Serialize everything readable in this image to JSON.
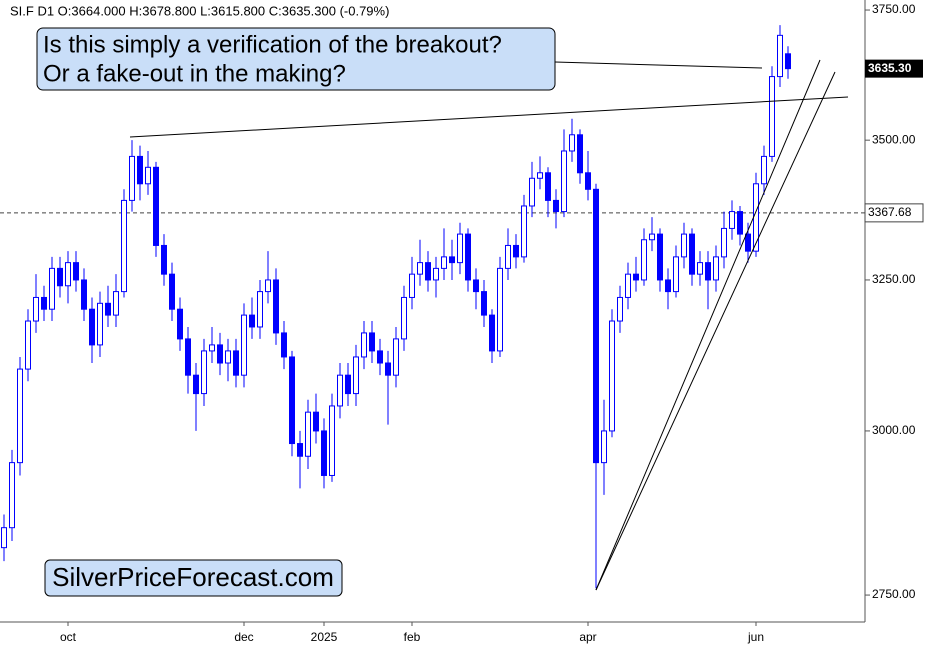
{
  "chart_data": {
    "type": "candlestick",
    "title": "SI.F  D1  O:3664.000  H:3678.800  L:3615.800  C:3635.300  (-0.79%)",
    "annotations": [
      "Is this simply a verification of the breakout?",
      "Or a fake-out in the making?"
    ],
    "watermark": "SilverPriceForecast.com",
    "color": "#0000ff",
    "log_scale": true,
    "grid": false,
    "ylim": [
      2711,
      3770
    ],
    "yticks": [
      {
        "value": 2750,
        "label": "2750.00"
      },
      {
        "value": 3000,
        "label": "3000.00"
      },
      {
        "value": 3250,
        "label": "3250.00"
      },
      {
        "value": 3500,
        "label": "3500.00"
      },
      {
        "value": 3750,
        "label": "3750.00"
      }
    ],
    "current_price": {
      "value": 3635.3,
      "label": "3635.30"
    },
    "level": {
      "value": 3367.68,
      "label": "3367.68"
    },
    "categories": [
      null,
      null,
      null,
      null,
      null,
      null,
      null,
      null,
      "oct",
      null,
      null,
      null,
      null,
      null,
      null,
      null,
      null,
      null,
      null,
      null,
      null,
      null,
      null,
      null,
      null,
      null,
      null,
      null,
      null,
      null,
      "dec",
      null,
      null,
      null,
      null,
      null,
      null,
      null,
      null,
      null,
      "2025",
      null,
      null,
      null,
      null,
      null,
      null,
      null,
      null,
      null,
      null,
      "feb",
      null,
      null,
      null,
      null,
      null,
      null,
      null,
      null,
      null,
      null,
      null,
      null,
      null,
      null,
      null,
      null,
      null,
      null,
      null,
      null,
      null,
      "apr",
      null,
      null,
      null,
      null,
      null,
      null,
      null,
      null,
      null,
      null,
      null,
      null,
      null,
      null,
      null,
      null,
      null,
      null,
      null,
      null,
      "jun",
      null,
      null,
      null,
      null
    ],
    "open": [
      2820,
      2850,
      2950,
      3100,
      3180,
      3220,
      3200,
      3270,
      3240,
      3280,
      3250,
      3200,
      3140,
      3210,
      3190,
      3230,
      3390,
      3470,
      3420,
      3450,
      3310,
      3260,
      3200,
      3150,
      3090,
      3060,
      3130,
      3140,
      3110,
      3130,
      3090,
      3190,
      3170,
      3230,
      3250,
      3160,
      3120,
      2980,
      2960,
      3030,
      3000,
      2930,
      3040,
      3090,
      3060,
      3120,
      3160,
      3130,
      3110,
      3090,
      3150,
      3220,
      3260,
      3280,
      3250,
      3270,
      3290,
      3280,
      3330,
      3250,
      3230,
      3190,
      3130,
      3270,
      3310,
      3290,
      3380,
      3430,
      3440,
      3390,
      3370,
      3480,
      3510,
      3440,
      3410,
      2950,
      3000,
      3180,
      3220,
      3260,
      3250,
      3320,
      3330,
      3250,
      3230,
      3290,
      3330,
      3260,
      3280,
      3250,
      3290,
      3340,
      3370,
      3330,
      3300,
      3420,
      3470,
      3620,
      3664
    ],
    "high": [
      2870,
      2970,
      3120,
      3200,
      3260,
      3240,
      3290,
      3290,
      3300,
      3300,
      3270,
      3220,
      3230,
      3240,
      3260,
      3410,
      3500,
      3490,
      3480,
      3460,
      3330,
      3280,
      3220,
      3170,
      3110,
      3150,
      3170,
      3160,
      3150,
      3150,
      3210,
      3220,
      3250,
      3300,
      3270,
      3180,
      3130,
      3000,
      3050,
      3060,
      3020,
      3060,
      3110,
      3110,
      3140,
      3180,
      3180,
      3150,
      3130,
      3170,
      3240,
      3290,
      3320,
      3300,
      3290,
      3340,
      3320,
      3350,
      3340,
      3270,
      3250,
      3200,
      3290,
      3340,
      3330,
      3400,
      3460,
      3470,
      3450,
      3410,
      3520,
      3540,
      3520,
      3480,
      3420,
      3050,
      3200,
      3240,
      3280,
      3290,
      3340,
      3360,
      3340,
      3270,
      3310,
      3350,
      3340,
      3300,
      3300,
      3310,
      3370,
      3390,
      3380,
      3350,
      3440,
      3490,
      3640,
      3720,
      3678.8
    ],
    "low": [
      2800,
      2830,
      2930,
      3080,
      3160,
      3180,
      3180,
      3220,
      3210,
      3230,
      3180,
      3110,
      3120,
      3170,
      3170,
      3220,
      3370,
      3390,
      3400,
      3290,
      3240,
      3180,
      3130,
      3060,
      3000,
      3040,
      3110,
      3090,
      3080,
      3070,
      3070,
      3150,
      3150,
      3210,
      3140,
      3100,
      2960,
      2910,
      2940,
      2980,
      2910,
      2920,
      3020,
      3040,
      3040,
      3100,
      3110,
      3090,
      3010,
      3070,
      3130,
      3200,
      3240,
      3230,
      3220,
      3250,
      3250,
      3260,
      3230,
      3200,
      3170,
      3110,
      3120,
      3250,
      3270,
      3280,
      3360,
      3410,
      3360,
      3340,
      3360,
      3460,
      3420,
      3390,
      2760,
      2900,
      2990,
      3160,
      3200,
      3230,
      3240,
      3300,
      3230,
      3200,
      3220,
      3270,
      3240,
      3240,
      3200,
      3230,
      3270,
      3320,
      3310,
      3280,
      3290,
      3400,
      3460,
      3600,
      3615.8
    ],
    "close": [
      2850,
      2950,
      3100,
      3180,
      3220,
      3200,
      3270,
      3240,
      3280,
      3250,
      3200,
      3140,
      3210,
      3190,
      3230,
      3390,
      3470,
      3420,
      3450,
      3310,
      3260,
      3200,
      3150,
      3090,
      3060,
      3130,
      3140,
      3110,
      3130,
      3090,
      3190,
      3170,
      3230,
      3250,
      3160,
      3120,
      2980,
      2960,
      3030,
      3000,
      2930,
      3040,
      3090,
      3060,
      3120,
      3160,
      3130,
      3110,
      3090,
      3150,
      3220,
      3260,
      3280,
      3250,
      3270,
      3290,
      3280,
      3330,
      3250,
      3230,
      3190,
      3130,
      3270,
      3310,
      3290,
      3380,
      3430,
      3440,
      3390,
      3370,
      3480,
      3510,
      3440,
      3410,
      2950,
      3000,
      3180,
      3220,
      3260,
      3250,
      3320,
      3330,
      3250,
      3230,
      3290,
      3330,
      3260,
      3280,
      3250,
      3290,
      3340,
      3370,
      3330,
      3300,
      3420,
      3470,
      3620,
      3700,
      3635.3
    ]
  }
}
